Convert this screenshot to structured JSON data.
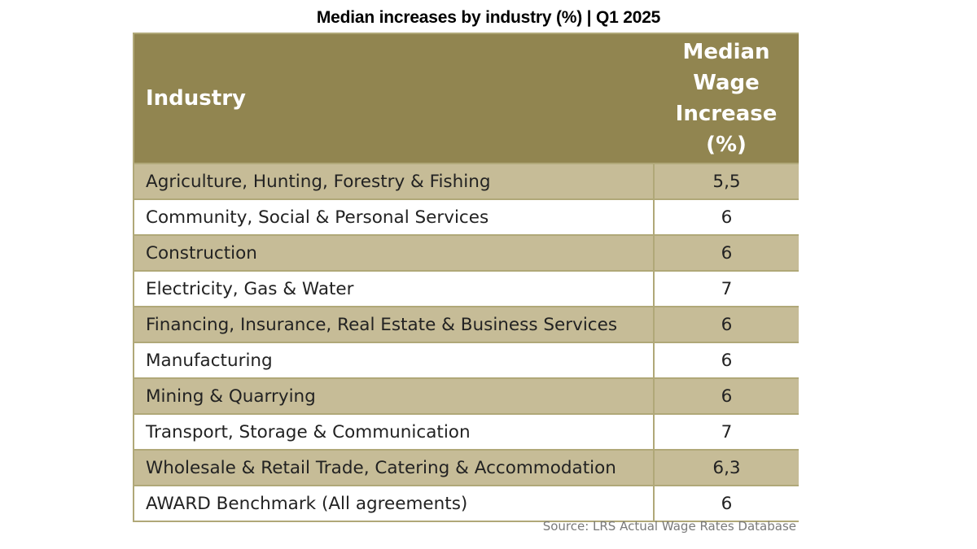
{
  "title": "Median increases by industry (%) | Q1 2025",
  "table": {
    "header": {
      "industry": "Industry",
      "value_lines": [
        "Median",
        "Wage",
        "Increase",
        "(%)"
      ]
    },
    "rows": [
      {
        "industry": "Agriculture, Hunting, Forestry & Fishing",
        "value": "5,5"
      },
      {
        "industry": "Community, Social & Personal Services",
        "value": "6"
      },
      {
        "industry": "Construction",
        "value": "6"
      },
      {
        "industry": "Electricity, Gas & Water",
        "value": "7"
      },
      {
        "industry": "Financing, Insurance, Real Estate & Business Services",
        "value": "6"
      },
      {
        "industry": "Manufacturing",
        "value": "6"
      },
      {
        "industry": "Mining & Quarrying",
        "value": "6"
      },
      {
        "industry": "Transport, Storage & Communication",
        "value": "7"
      },
      {
        "industry": "Wholesale & Retail Trade, Catering & Accommodation",
        "value": "6,3"
      },
      {
        "industry": "AWARD Benchmark (All agreements)",
        "value": "6"
      }
    ],
    "colors": {
      "header_bg": "#918550",
      "shaded_row_bg": "#c6bc97",
      "plain_row_bg": "#ffffff",
      "border": "#b0a878"
    }
  },
  "source": "Source: LRS Actual Wage Rates Database"
}
